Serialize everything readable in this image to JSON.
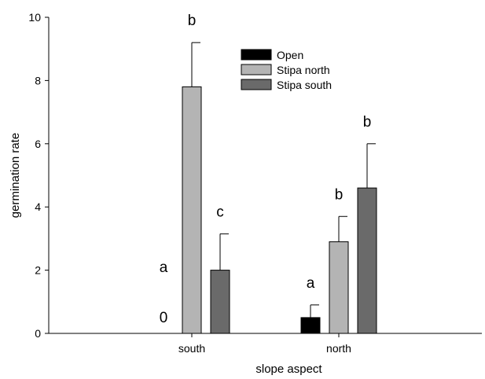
{
  "chart_data": {
    "type": "bar",
    "xlabel": "slope aspect",
    "ylabel": "germination rate",
    "ylim": [
      0,
      10
    ],
    "yticks": [
      0,
      2,
      4,
      6,
      8,
      10
    ],
    "categories": [
      "south",
      "north"
    ],
    "legend_position": "top-center",
    "series": [
      {
        "name": "Open",
        "color": "#000000",
        "values": [
          0,
          0.5
        ],
        "error": [
          0,
          0.4
        ],
        "sig_labels": [
          "a",
          "a"
        ]
      },
      {
        "name": "Stipa north",
        "color": "#b4b4b4",
        "values": [
          7.8,
          2.9
        ],
        "error": [
          1.4,
          0.8
        ],
        "sig_labels": [
          "b",
          "b"
        ]
      },
      {
        "name": "Stipa south",
        "color": "#6a6a6a",
        "values": [
          2.0,
          4.6
        ],
        "error": [
          1.15,
          1.4
        ],
        "sig_labels": [
          "c",
          "b"
        ]
      }
    ],
    "annotations": [
      {
        "text": "0",
        "category": "south",
        "series": "Open"
      }
    ]
  }
}
